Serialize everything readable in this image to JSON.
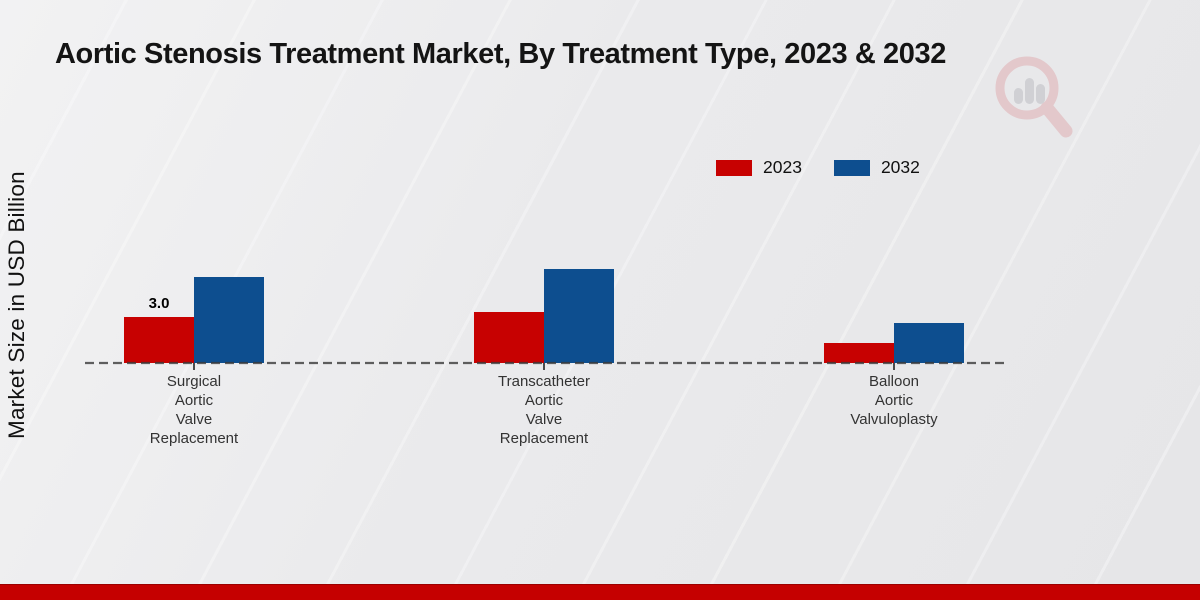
{
  "title": "Aortic Stenosis Treatment Market, By Treatment Type, 2023 & 2032",
  "y_axis_label": "Market Size in USD Billion",
  "legend": [
    {
      "label": "2023",
      "color": "#c70101"
    },
    {
      "label": "2032",
      "color": "#0d4e8f"
    }
  ],
  "chart_data": {
    "type": "bar",
    "title": "Aortic Stenosis Treatment Market, By Treatment Type, 2023 & 2032",
    "xlabel": "",
    "ylabel": "Market Size in USD Billion",
    "categories": [
      "Surgical Aortic Valve Replacement",
      "Transcatheter Aortic Valve Replacement",
      "Balloon Aortic Valvuloplasty"
    ],
    "category_lines": [
      [
        "Surgical",
        "Aortic",
        "Valve",
        "Replacement"
      ],
      [
        "Transcatheter",
        "Aortic",
        "Valve",
        "Replacement"
      ],
      [
        "Balloon",
        "Aortic",
        "Valvuloplasty"
      ]
    ],
    "series": [
      {
        "name": "2023",
        "color": "#c70101",
        "values": [
          3.0,
          3.3,
          1.3
        ]
      },
      {
        "name": "2032",
        "color": "#0d4e8f",
        "values": [
          5.6,
          6.1,
          2.6
        ]
      }
    ],
    "annotations": [
      {
        "text": "3.0",
        "series_index": 0,
        "category_index": 0
      }
    ],
    "baseline_value": 0,
    "grid": false,
    "baseline_style": "dashed",
    "legend_position": "upper-right"
  },
  "colors": {
    "background": "#e9e9eb",
    "footer_band": "#c50000",
    "baseline_dash": "#3a3a3a",
    "title_text": "#141414",
    "label_text": "#333333",
    "watermark_pink": "#dfa9ad",
    "watermark_grey": "#b9bac0"
  },
  "watermark_icon": "magnifier-bar-chart-logo"
}
